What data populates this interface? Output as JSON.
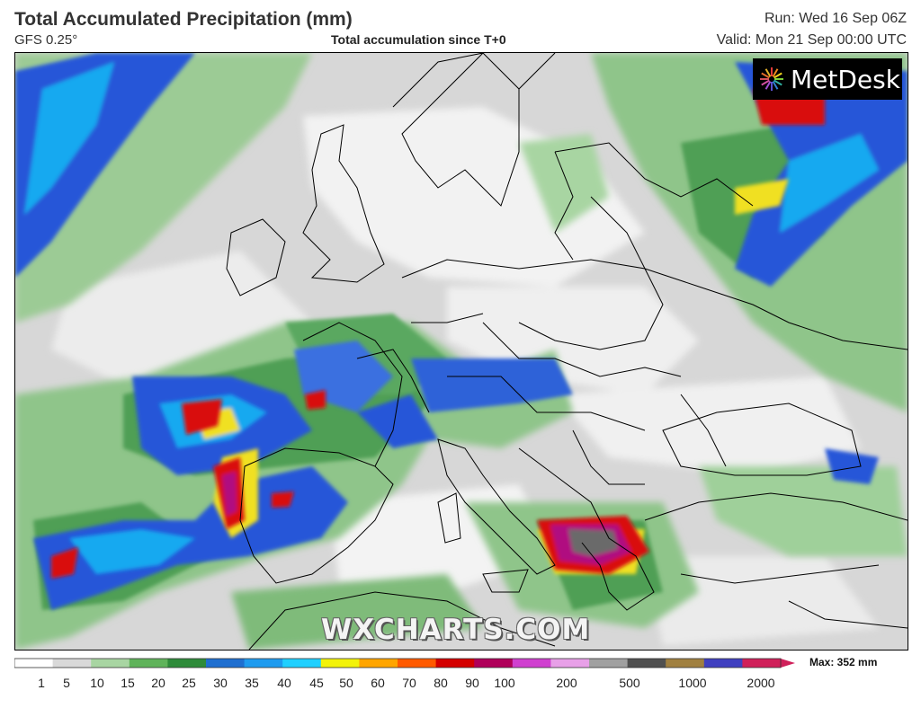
{
  "header": {
    "title": "Total Accumulated Precipitation (mm)",
    "model": "GFS 0.25°",
    "description": "Total accumulation since T+0",
    "run": "Run: Wed 16 Sep 06Z",
    "valid": "Valid: Mon 21 Sep 00:00 UTC"
  },
  "logo": {
    "text": "MetDesk"
  },
  "watermark": "WXCHARTS.COM",
  "scale": {
    "max_label": "Max: 352 mm",
    "ticks": [
      "1",
      "5",
      "10",
      "15",
      "20",
      "25",
      "30",
      "35",
      "40",
      "45",
      "50",
      "60",
      "70",
      "80",
      "90",
      "100",
      "200",
      "500",
      "1000",
      "2000"
    ],
    "colors": [
      "#ffffff",
      "#d9d9d9",
      "#a8d5a2",
      "#5fb35a",
      "#2e8b3a",
      "#1f6fd0",
      "#1e9bef",
      "#20d0ff",
      "#f3f30a",
      "#ffa500",
      "#ff5a00",
      "#d40000",
      "#b0005a",
      "#d040d0",
      "#e8a0e8",
      "#a0a0a0",
      "#505050",
      "#a08040",
      "#4040c0",
      "#d0205a"
    ]
  },
  "map": {
    "region": "Europe",
    "colors": {
      "sea": "#d7d7d7",
      "light_precip": "#f2f2f2",
      "green_low": "#8fc58a",
      "green_mid": "#4f9f55",
      "green_dark": "#2b7a3a",
      "blue": "#2756d8",
      "cyan": "#19a9f0",
      "yellow": "#f0e020",
      "orange": "#ff8a00",
      "red": "#d91010",
      "magenta": "#b01080",
      "grey_core": "#6a6a6a"
    }
  }
}
